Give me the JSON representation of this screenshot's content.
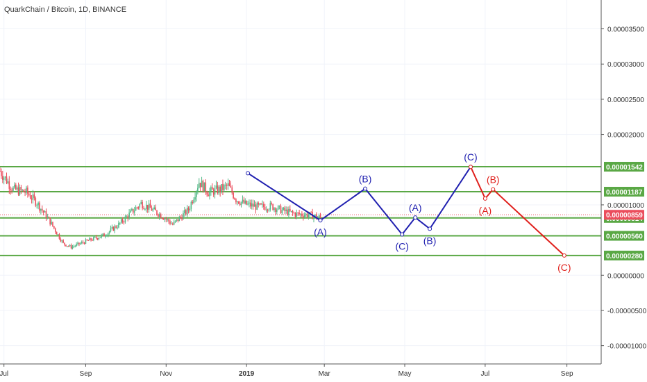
{
  "header": {
    "title": "QuarkChain / Bitcoin, 1D, BINANCE"
  },
  "colors": {
    "up": "#53b987",
    "down": "#eb4d5c",
    "hline": "#5aa845",
    "wave_blue": "#2020b0",
    "wave_red": "#e0201c",
    "price_tag": "#eb4d5c",
    "grid": "#f0f3fa",
    "axis": "#555555"
  },
  "chart_data": {
    "type": "candlestick",
    "x_axis_labels": [
      {
        "label": "Jul",
        "x": "2018-07-01"
      },
      {
        "label": "Sep",
        "x": "2018-09-01"
      },
      {
        "label": "Nov",
        "x": "2018-11-01"
      },
      {
        "label": "2019",
        "x": "2019-01-01"
      },
      {
        "label": "Mar",
        "x": "2019-03-01"
      },
      {
        "label": "May",
        "x": "2019-05-01"
      },
      {
        "label": "Jul",
        "x": "2019-07-01"
      },
      {
        "label": "Sep",
        "x": "2019-09-01"
      }
    ],
    "y_axis_ticks": [
      "0.00003500",
      "0.00003000",
      "0.00002500",
      "0.00002000",
      "0.00001000",
      "0.00000000",
      "-0.00000500",
      "-0.00001000"
    ],
    "y_tick_values": [
      3.5e-05,
      3e-05,
      2.5e-05,
      2e-05,
      1e-05,
      0,
      -5e-06,
      -1e-05
    ],
    "ylim": [
      -1.26e-05,
      3.91e-05
    ],
    "xlim": [
      "2018-06-28",
      "2019-09-27"
    ],
    "horizontal_levels": [
      {
        "value": 1.542e-05,
        "label": "0.00001542",
        "color": "#5aa845"
      },
      {
        "value": 1.187e-05,
        "label": "0.00001187",
        "color": "#5aa845"
      },
      {
        "value": 8.14e-06,
        "label": "0.00000814",
        "color": "#5aa845"
      },
      {
        "value": 5.6e-06,
        "label": "0.00000560",
        "color": "#5aa845"
      },
      {
        "value": 2.8e-06,
        "label": "0.00000280",
        "color": "#5aa845"
      }
    ],
    "last_price": {
      "value": 8.59e-06,
      "label": "0.00000859",
      "color": "#eb4d5c"
    },
    "price_series": {
      "note": "approximate daily closes",
      "anchors": [
        [
          "2018-06-28",
          1.48e-05
        ],
        [
          "2018-07-08",
          1.22e-05
        ],
        [
          "2018-07-18",
          1.18e-05
        ],
        [
          "2018-07-26",
          1.03e-05
        ],
        [
          "2018-08-05",
          7.6e-06
        ],
        [
          "2018-08-15",
          4.5e-06
        ],
        [
          "2018-08-21",
          4e-06
        ],
        [
          "2018-09-01",
          4.8e-06
        ],
        [
          "2018-09-15",
          5.7e-06
        ],
        [
          "2018-09-26",
          7.2e-06
        ],
        [
          "2018-10-06",
          9e-06
        ],
        [
          "2018-10-13",
          1.02e-05
        ],
        [
          "2018-10-20",
          9.5e-06
        ],
        [
          "2018-10-30",
          8.3e-06
        ],
        [
          "2018-11-06",
          7.2e-06
        ],
        [
          "2018-11-18",
          9.3e-06
        ],
        [
          "2018-11-26",
          1.33e-05
        ],
        [
          "2018-12-03",
          1.18e-05
        ],
        [
          "2018-12-12",
          1.22e-05
        ],
        [
          "2018-12-18",
          1.27e-05
        ],
        [
          "2018-12-24",
          1.08e-05
        ],
        [
          "2018-12-31",
          1.01e-05
        ],
        [
          "2019-01-10",
          9.7e-06
        ],
        [
          "2019-01-20",
          9.8e-06
        ],
        [
          "2019-01-28",
          9.2e-06
        ],
        [
          "2019-02-07",
          8.7e-06
        ],
        [
          "2019-02-17",
          8.6e-06
        ],
        [
          "2019-02-26",
          8.2e-06
        ]
      ]
    },
    "wave_blue": {
      "points": [
        {
          "date": "2019-01-02",
          "value": 1.45e-05,
          "label": ""
        },
        {
          "date": "2019-02-26",
          "value": 7.8e-06,
          "label": "(A)"
        },
        {
          "date": "2019-04-01",
          "value": 1.23e-05,
          "label": "(B)"
        },
        {
          "date": "2019-04-29",
          "value": 5.8e-06,
          "label": "(C)"
        },
        {
          "date": "2019-05-09",
          "value": 8.2e-06,
          "label": "(A)"
        },
        {
          "date": "2019-05-20",
          "value": 6.6e-06,
          "label": "(B)"
        },
        {
          "date": "2019-06-20",
          "value": 1.54e-05,
          "label": "(C)"
        }
      ]
    },
    "wave_red": {
      "points": [
        {
          "date": "2019-06-20",
          "value": 1.54e-05,
          "label": ""
        },
        {
          "date": "2019-07-01",
          "value": 1.09e-05,
          "label": "(A)"
        },
        {
          "date": "2019-07-07",
          "value": 1.22e-05,
          "label": "(B)"
        },
        {
          "date": "2019-08-30",
          "value": 2.8e-06,
          "label": "(C)"
        }
      ]
    }
  }
}
